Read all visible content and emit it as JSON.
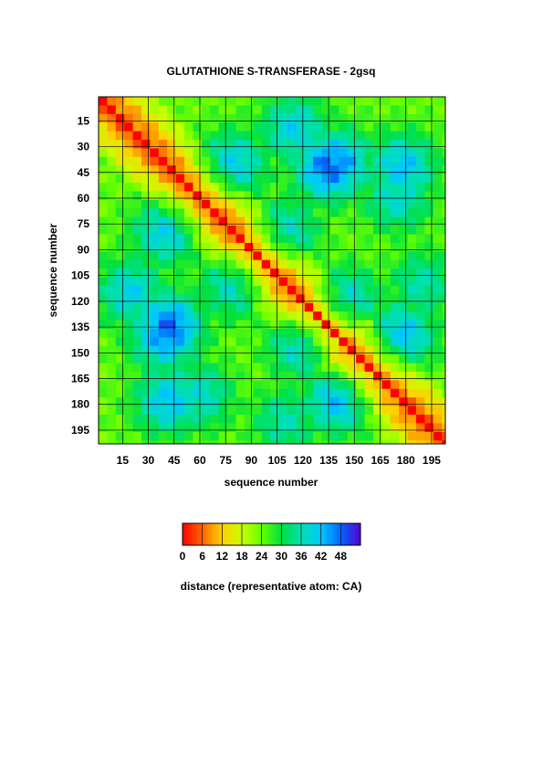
{
  "chart_data": {
    "type": "heatmap",
    "title": "GLUTATHIONE S-TRANSFERASE - 2gsq",
    "xlabel": "sequence number",
    "ylabel": "sequence number",
    "xlim": [
      1,
      203
    ],
    "ylim": [
      1,
      203
    ],
    "x_ticks": [
      "15",
      "30",
      "45",
      "60",
      "75",
      "90",
      "105",
      "120",
      "135",
      "150",
      "165",
      "180",
      "195"
    ],
    "y_ticks": [
      "15",
      "30",
      "45",
      "60",
      "75",
      "90",
      "105",
      "120",
      "135",
      "150",
      "165",
      "180",
      "195"
    ],
    "grid": true,
    "colorbar": {
      "label": "distance (representative atom: CA)",
      "ticks": [
        "0",
        "6",
        "12",
        "18",
        "24",
        "30",
        "36",
        "42",
        "48"
      ],
      "range": [
        0,
        54
      ],
      "colors": [
        "#ff0000",
        "#ff6600",
        "#ffd000",
        "#c8ff00",
        "#66ff00",
        "#00e040",
        "#00e0b0",
        "#00c8ff",
        "#0066ff",
        "#5500cc"
      ]
    },
    "distance_hotspots": [
      {
        "i": 42,
        "j": 135,
        "distance": 46
      },
      {
        "i": 42,
        "j": 178,
        "distance": 40
      },
      {
        "i": 140,
        "j": 178,
        "distance": 40
      },
      {
        "i": 115,
        "j": 20,
        "distance": 38
      },
      {
        "i": 140,
        "j": 40,
        "distance": 44
      },
      {
        "i": 80,
        "j": 40,
        "distance": 38
      },
      {
        "i": 110,
        "j": 80,
        "distance": 36
      },
      {
        "i": 190,
        "j": 110,
        "distance": 34
      },
      {
        "i": 60,
        "j": 175,
        "distance": 36
      },
      {
        "i": 120,
        "j": 145,
        "distance": 38
      },
      {
        "i": 20,
        "j": 110,
        "distance": 32
      }
    ]
  }
}
